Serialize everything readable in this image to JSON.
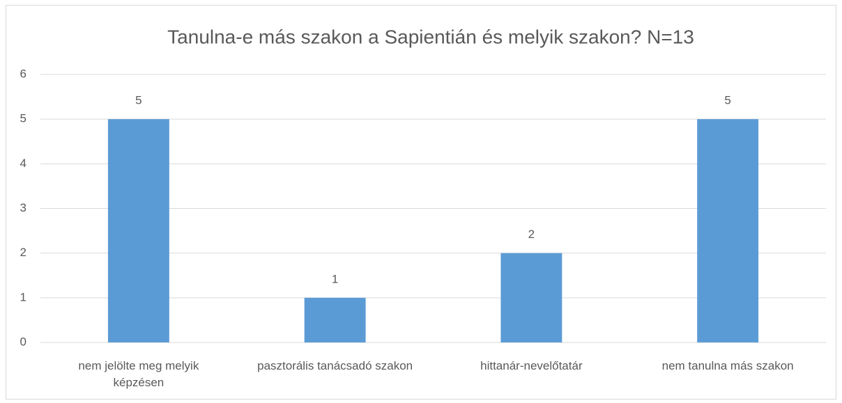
{
  "chart_data": {
    "type": "bar",
    "title": "Tanulna-e más szakon a Sapientián és melyik szakon? N=13",
    "categories": [
      "nem jelölte meg melyik képzésen",
      "pasztorális tanácsadó szakon",
      "hittanár-nevelőtatár",
      "nem tanulna más szakon"
    ],
    "values": [
      5,
      1,
      2,
      5
    ],
    "color": "#5b9bd5",
    "ylim": [
      0,
      6
    ],
    "yticks": [
      0,
      1,
      2,
      3,
      4,
      5,
      6
    ],
    "grid": true
  }
}
